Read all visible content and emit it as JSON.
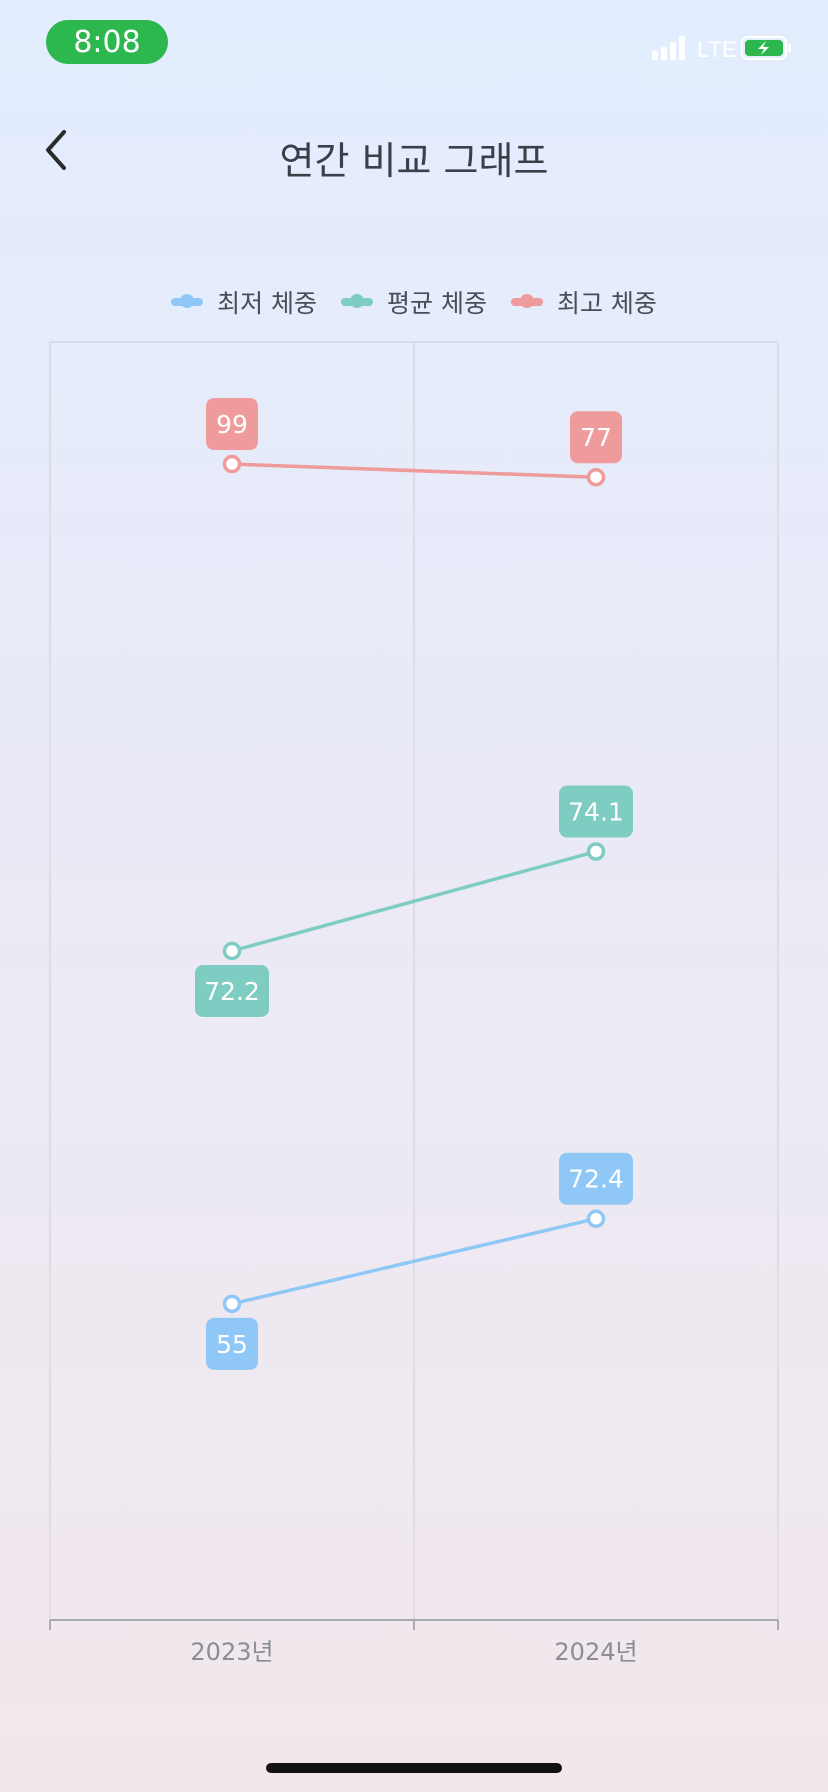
{
  "status_bar": {
    "time": "8:08",
    "network": "LTE",
    "time_pill_color": "#2db84f",
    "battery_color": "#2db84f"
  },
  "header": {
    "title": "연간 비교 그래프",
    "back_icon": "chevron-left-icon"
  },
  "chart_data": {
    "type": "line",
    "categories": [
      "2023년",
      "2024년"
    ],
    "series": [
      {
        "name": "최저 체중",
        "color": "#8fc8f6",
        "values": [
          55,
          72.4
        ],
        "label_position": [
          "below",
          "above"
        ]
      },
      {
        "name": "평균 체중",
        "color": "#7fcdc2",
        "values": [
          72.2,
          74.1
        ],
        "label_position": [
          "below",
          "above"
        ]
      },
      {
        "name": "최고 체중",
        "color": "#ef9b9b",
        "values": [
          99,
          77
        ],
        "label_position": [
          "above",
          "above"
        ]
      }
    ],
    "value_mapping": [
      {
        "value": 55,
        "level": 0.2474
      },
      {
        "value": 72.2,
        "level": 0.5235
      },
      {
        "value": 72.4,
        "level": 0.314
      },
      {
        "value": 74.1,
        "level": 0.6013
      },
      {
        "value": 77,
        "level": 0.8942
      },
      {
        "value": 99,
        "level": 0.9045
      }
    ],
    "grid": true,
    "legend": "top-center"
  }
}
